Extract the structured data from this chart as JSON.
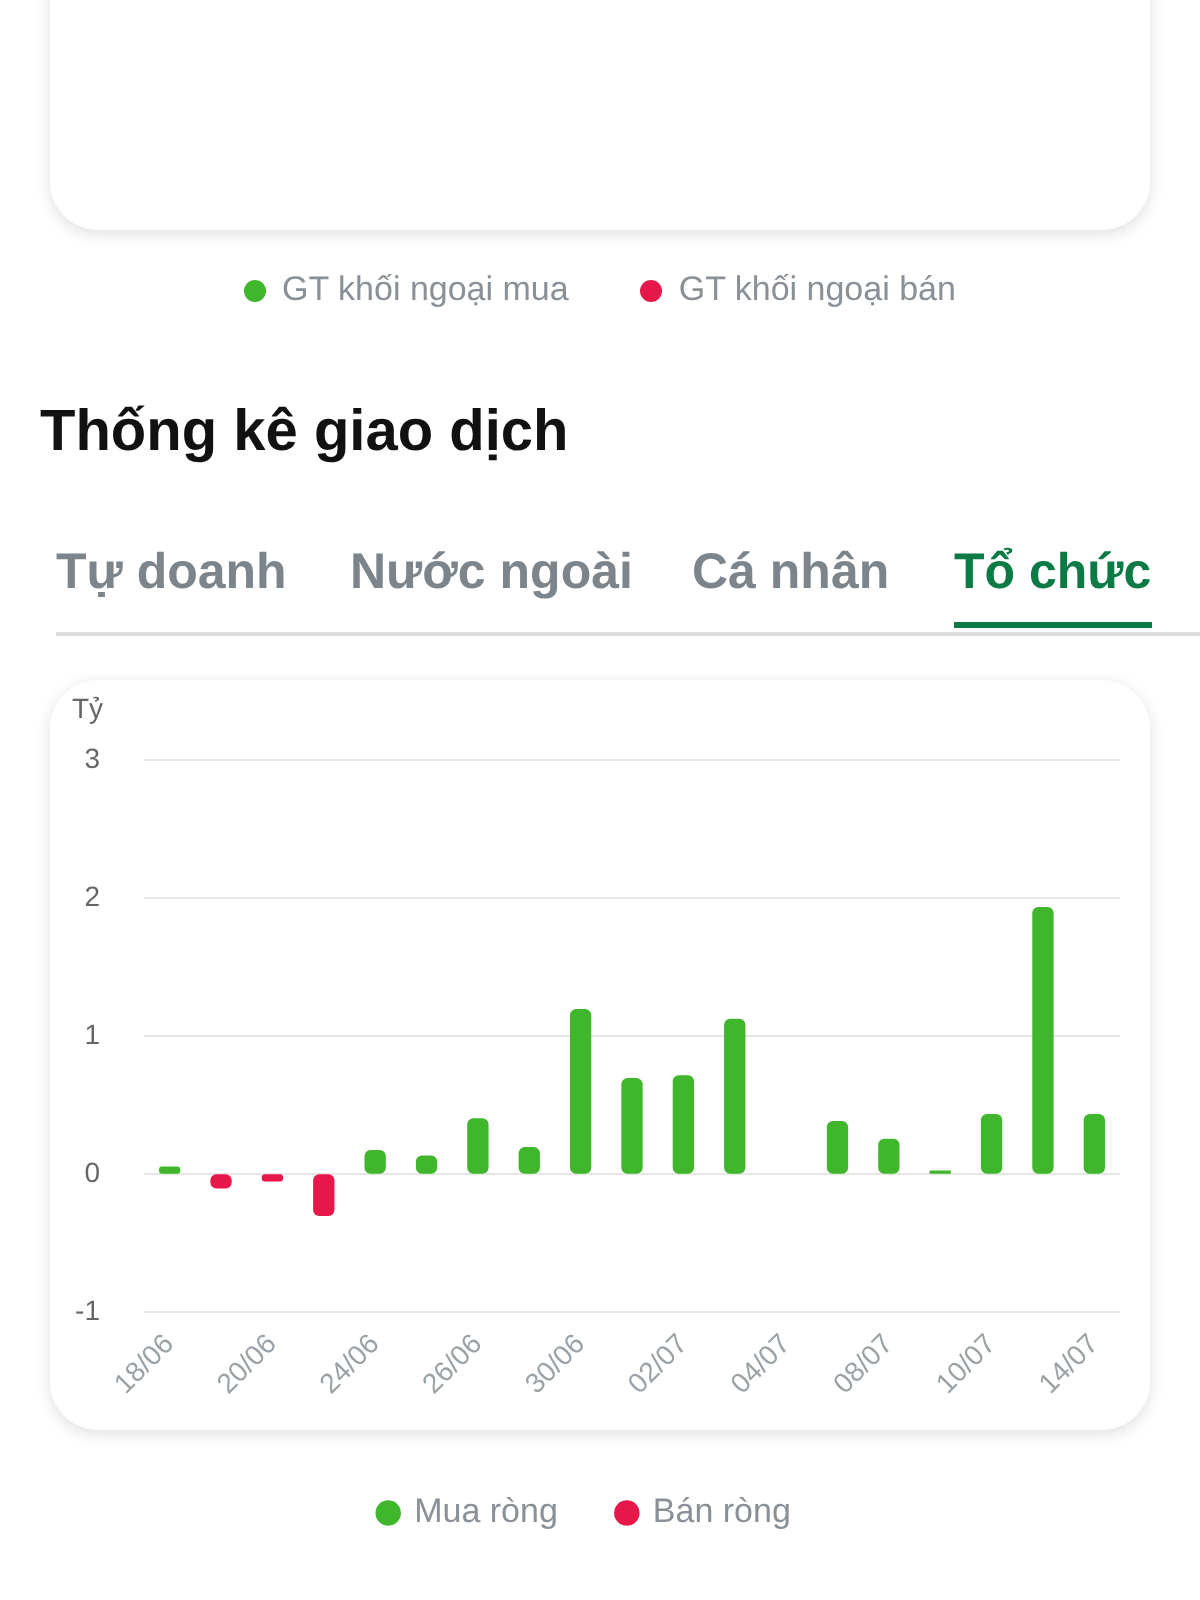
{
  "chart_data": [
    {
      "type": "other",
      "series": [
        {
          "name": "GT khối ngoại mua",
          "color": "#3fb62c"
        },
        {
          "name": "GT khối ngoại bán",
          "color": "#e8174a"
        }
      ],
      "legend": "bottom"
    },
    {
      "type": "bar",
      "title": "Thống kê giao dịch",
      "ylabel": "Tỷ",
      "annotations": [
        "Tự doanh",
        "Nước ngoài",
        "Cá nhân",
        "Tổ chức"
      ],
      "categories": [
        "18/06",
        null,
        "20/06",
        null,
        "24/06",
        null,
        "26/06",
        null,
        "30/06",
        null,
        "02/07",
        null,
        "04/07",
        null,
        "08/07",
        null,
        "10/07",
        null,
        "14/07"
      ],
      "series": [
        {
          "name": "Mua ròng",
          "color": "#3fb62c",
          "values": [
            0.05,
            null,
            null,
            null,
            0.17,
            0.13,
            0.4,
            0.19,
            1.19,
            0.69,
            0.71,
            1.12,
            null,
            0.38,
            0.25,
            0.02,
            0.43,
            1.93,
            0.43
          ]
        },
        {
          "name": "Bán ròng",
          "color": "#e8174a",
          "values": [
            null,
            -0.1,
            -0.05,
            -0.3,
            null,
            null,
            null,
            null,
            null,
            null,
            null,
            null,
            null,
            null,
            null,
            null,
            null,
            null,
            null
          ]
        }
      ],
      "ylim": [
        -1,
        3
      ],
      "yticks": [
        -1,
        0,
        1,
        2,
        3
      ],
      "grid": "y",
      "legend": "bottom"
    }
  ]
}
